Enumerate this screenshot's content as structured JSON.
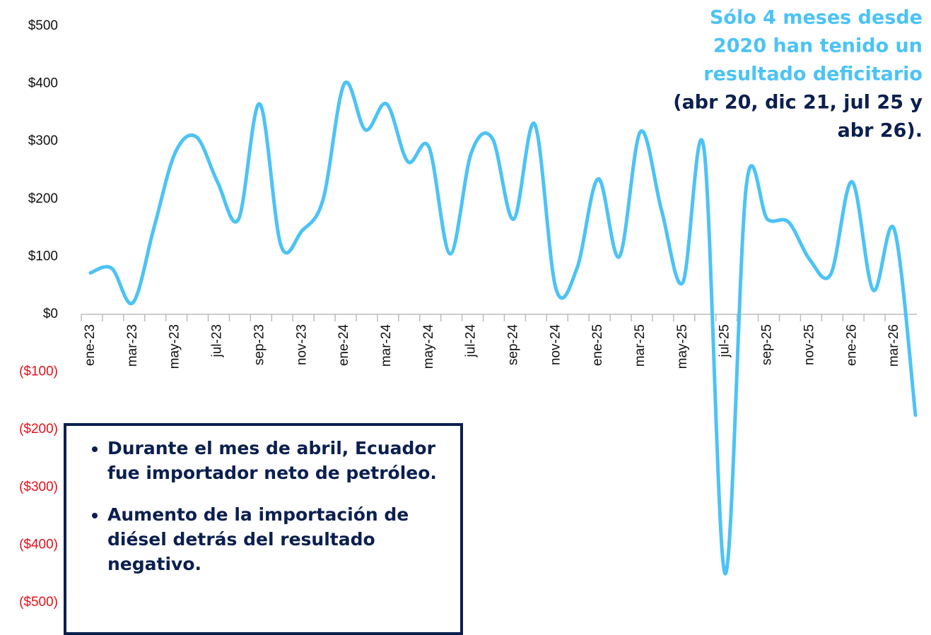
{
  "chart_data": {
    "type": "line",
    "categories": [
      "ene-23",
      null,
      "mar-23",
      null,
      "may-23",
      null,
      "jul-23",
      null,
      "sep-23",
      null,
      "nov-23",
      null,
      "ene-24",
      null,
      "mar-24",
      null,
      "may-24",
      null,
      "jul-24",
      null,
      "sep-24",
      null,
      "nov-24",
      null,
      "ene-25",
      null,
      "mar-25",
      null,
      "may-25",
      null,
      "jul-25",
      null,
      "sep-25",
      null,
      "nov-25",
      null,
      "ene-26",
      null,
      "mar-26",
      null
    ],
    "series": [
      {
        "color": "#4cc3f5",
        "values": [
          72,
          80,
          20,
          150,
          280,
          308,
          230,
          165,
          365,
          120,
          145,
          200,
          400,
          320,
          365,
          265,
          290,
          105,
          280,
          305,
          165,
          330,
          45,
          80,
          235,
          100,
          317,
          180,
          55,
          288,
          -450,
          222,
          165,
          160,
          95,
          70,
          230,
          42,
          147,
          -175
        ]
      }
    ],
    "ylim": [
      -500,
      500
    ],
    "yticks": [
      {
        "value": -500,
        "label": "($500)"
      },
      {
        "value": -400,
        "label": "($400)"
      },
      {
        "value": -300,
        "label": "($300)"
      },
      {
        "value": -200,
        "label": "($200)"
      },
      {
        "value": -100,
        "label": "($100)"
      },
      {
        "value": 0,
        "label": "$0"
      },
      {
        "value": 100,
        "label": "$100"
      },
      {
        "value": 200,
        "label": "$200"
      },
      {
        "value": 300,
        "label": "$300"
      },
      {
        "value": 400,
        "label": "$400"
      },
      {
        "value": 500,
        "label": "$500"
      }
    ],
    "tick_color": "#111111",
    "negative_tick_color": "#e8101a",
    "annotation": [
      {
        "text": "Sólo 4 meses desde",
        "color": "#4cc3f5"
      },
      {
        "text": "2020 han tenido un",
        "color": "#4cc3f5"
      },
      {
        "text": "resultado deficitario",
        "color": "#4cc3f5"
      },
      {
        "text": "(abr 20, dic 21, jul 25 y",
        "color": "#0b1f4f"
      },
      {
        "text": "abr 26).",
        "color": "#0b1f4f"
      }
    ],
    "notes": [
      "Durante el mes de abril, Ecuador fue importador neto de petróleo.",
      "Aumento de la importación de diésel detrás del resultado negativo."
    ]
  }
}
